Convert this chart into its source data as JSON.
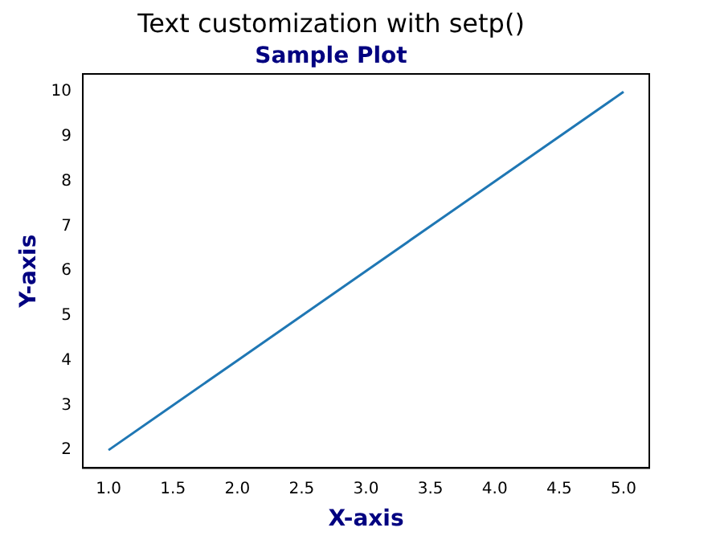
{
  "chart_data": {
    "type": "line",
    "title": "Text customization with setp()",
    "subtitle": "Sample Plot",
    "xlabel": "X-axis",
    "ylabel": "Y-axis",
    "x": [
      1,
      2,
      3,
      4,
      5
    ],
    "series": [
      {
        "color": "#1f77b4",
        "values": [
          2,
          4,
          6,
          8,
          10
        ]
      }
    ],
    "xlim": [
      0.8,
      5.2
    ],
    "xticks": [
      {
        "value": 1,
        "label": "1.0"
      },
      {
        "value": 1.5,
        "label": "1.5"
      },
      {
        "value": 2,
        "label": "2.0"
      },
      {
        "value": 2.5,
        "label": "2.5"
      },
      {
        "value": 3,
        "label": "3.0"
      },
      {
        "value": 3.5,
        "label": "3.5"
      },
      {
        "value": 4,
        "label": "4.0"
      },
      {
        "value": 4.5,
        "label": "4.5"
      },
      {
        "value": 5,
        "label": "5.0"
      }
    ],
    "ylim": [
      1.6,
      10.4
    ],
    "yticks": [
      2,
      3,
      4,
      5,
      6,
      7,
      8,
      9,
      10
    ],
    "grid": false,
    "legend": false
  }
}
